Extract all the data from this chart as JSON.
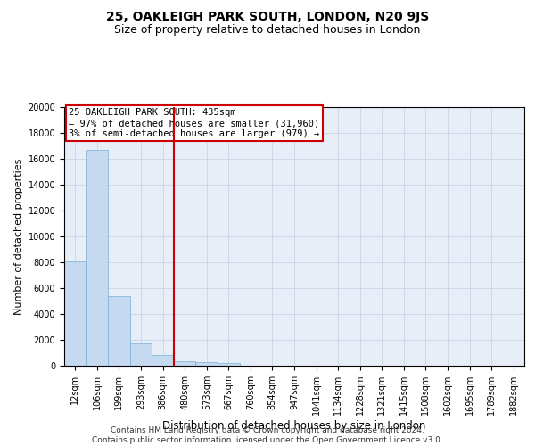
{
  "title": "25, OAKLEIGH PARK SOUTH, LONDON, N20 9JS",
  "subtitle": "Size of property relative to detached houses in London",
  "xlabel": "Distribution of detached houses by size in London",
  "ylabel": "Number of detached properties",
  "categories": [
    "12sqm",
    "106sqm",
    "199sqm",
    "293sqm",
    "386sqm",
    "480sqm",
    "573sqm",
    "667sqm",
    "760sqm",
    "854sqm",
    "947sqm",
    "1041sqm",
    "1134sqm",
    "1228sqm",
    "1321sqm",
    "1415sqm",
    "1508sqm",
    "1602sqm",
    "1695sqm",
    "1789sqm",
    "1882sqm"
  ],
  "values": [
    8100,
    16700,
    5400,
    1750,
    800,
    350,
    260,
    220,
    0,
    0,
    0,
    0,
    0,
    0,
    0,
    0,
    0,
    0,
    0,
    0,
    0
  ],
  "bar_color": "#c5d9f0",
  "bar_edge_color": "#7aafd4",
  "vline_x": 4.5,
  "vline_color": "#cc0000",
  "annotation_text": "25 OAKLEIGH PARK SOUTH: 435sqm\n← 97% of detached houses are smaller (31,960)\n3% of semi-detached houses are larger (979) →",
  "annotation_box_color": "#cc0000",
  "ylim": [
    0,
    20000
  ],
  "yticks": [
    0,
    2000,
    4000,
    6000,
    8000,
    10000,
    12000,
    14000,
    16000,
    18000,
    20000
  ],
  "grid_color": "#c8d4e8",
  "bg_color": "#e8eef8",
  "footer": "Contains HM Land Registry data © Crown copyright and database right 2024.\nContains public sector information licensed under the Open Government Licence v3.0.",
  "title_fontsize": 10,
  "subtitle_fontsize": 9,
  "xlabel_fontsize": 8.5,
  "ylabel_fontsize": 8,
  "tick_fontsize": 7,
  "annotation_fontsize": 7.5,
  "footer_fontsize": 6.5
}
